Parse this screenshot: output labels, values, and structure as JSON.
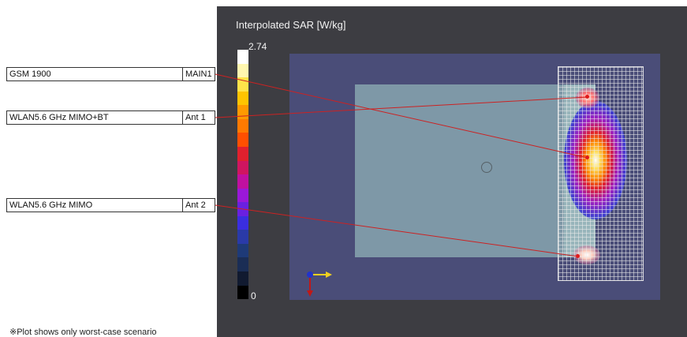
{
  "antenna_labels": [
    {
      "band": "GSM 1900",
      "antenna": "MAIN1"
    },
    {
      "band": "WLAN5.6 GHz MIMO+BT",
      "antenna": "Ant 1"
    },
    {
      "band": "WLAN5.6 GHz MIMO",
      "antenna": "Ant 2"
    }
  ],
  "footnote": "※Plot shows only worst-case scenario",
  "sar_plot": {
    "title": "Interpolated SAR [W/kg]",
    "scale_max": "2.74",
    "scale_min": "0",
    "colorbar_colors": [
      "#ffffff",
      "#fff7b0",
      "#ffe34a",
      "#ffc400",
      "#ff9a00",
      "#ff7a00",
      "#ff4f00",
      "#e0202e",
      "#d01560",
      "#c010a0",
      "#9a18d8",
      "#6a20e0",
      "#3a2ee0",
      "#2a3aa8",
      "#1e3a78",
      "#1a2d55",
      "#111a30",
      "#000000"
    ],
    "marker_color": "#e01a1a",
    "leader_line_color": "#cc2222"
  }
}
